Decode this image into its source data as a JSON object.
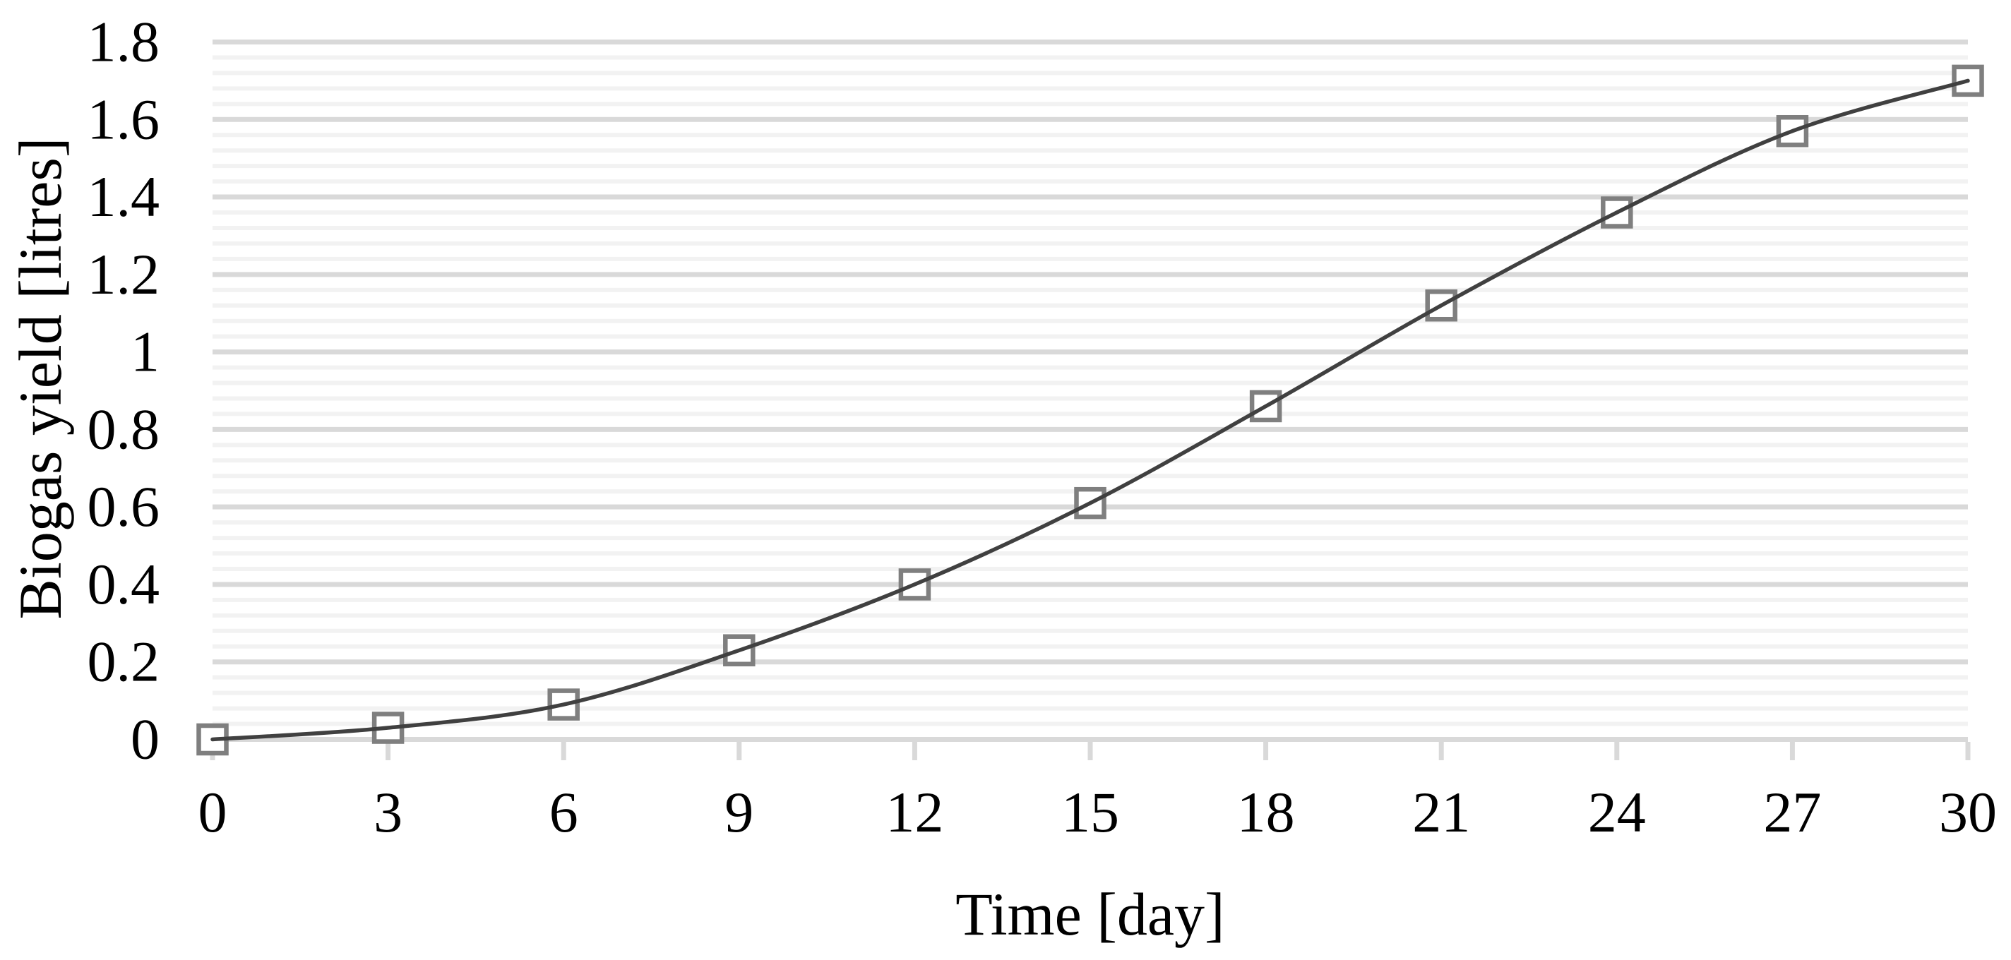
{
  "chart_data": {
    "type": "line",
    "title": "",
    "xlabel": "Time [day]",
    "ylabel": "Biogas yield [litres]",
    "x": [
      0,
      3,
      6,
      9,
      12,
      15,
      18,
      21,
      24,
      27,
      30
    ],
    "series": [
      {
        "name": "Biogas yield",
        "values": [
          0,
          0.03,
          0.09,
          0.23,
          0.4,
          0.61,
          0.86,
          1.12,
          1.36,
          1.57,
          1.7
        ]
      }
    ],
    "xlim": [
      0,
      30
    ],
    "ylim": [
      0,
      1.8
    ],
    "x_tick_labels": [
      "0",
      "3",
      "6",
      "9",
      "12",
      "15",
      "18",
      "21",
      "24",
      "27",
      "30"
    ],
    "y_tick_labels": [
      "0",
      "0.2",
      "0.4",
      "0.6",
      "0.8",
      "1",
      "1.2",
      "1.4",
      "1.6",
      "1.8"
    ],
    "y_major_step": 0.2,
    "y_minor_step": 0.04,
    "grid": "horizontal major and minor gridlines, no vertical gridlines, no plot border",
    "legend": "none",
    "line_style": "smooth curve",
    "marker": "open-square",
    "colors": {
      "line": "#404040",
      "marker_stroke": "#7f7f7f",
      "marker_fill": "#ffffff",
      "major_grid": "#d9d9d9",
      "minor_grid": "#f2f2f2",
      "x_tick_mark": "#d9d9d9",
      "text": "#000000"
    }
  }
}
